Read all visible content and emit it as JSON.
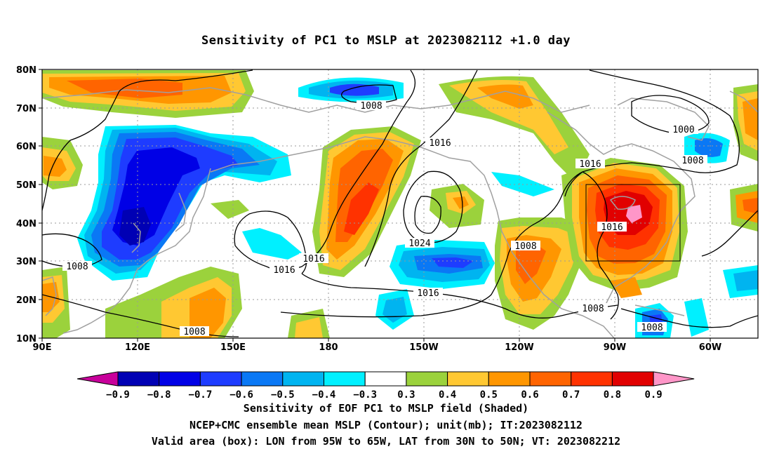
{
  "title": "Sensitivity of PC1 to MSLP at 2023082112 +1.0 day",
  "map": {
    "lat_ticks": [
      "10N",
      "20N",
      "30N",
      "40N",
      "50N",
      "60N",
      "70N",
      "80N"
    ],
    "lon_ticks": [
      "90E",
      "120E",
      "150E",
      "180",
      "150W",
      "120W",
      "90W",
      "60W"
    ],
    "contour_labels": [
      {
        "text": "1008",
        "id": "c1"
      },
      {
        "text": "1000",
        "id": "c2"
      },
      {
        "text": "1016",
        "id": "c3"
      },
      {
        "text": "1008",
        "id": "c4"
      },
      {
        "text": "1016",
        "id": "c5"
      },
      {
        "text": "1024",
        "id": "c6"
      },
      {
        "text": "1016",
        "id": "c7"
      },
      {
        "text": "1016",
        "id": "c8"
      },
      {
        "text": "1016",
        "id": "c9"
      },
      {
        "text": "1016",
        "id": "c10"
      },
      {
        "text": "1008",
        "id": "c11"
      },
      {
        "text": "1008",
        "id": "c12"
      },
      {
        "text": "1008",
        "id": "c13"
      },
      {
        "text": "1008",
        "id": "c14"
      },
      {
        "text": "1008",
        "id": "c15"
      }
    ],
    "valid_box": {
      "lon_min": "95W",
      "lon_max": "65W",
      "lat_min": "30N",
      "lat_max": "50N"
    }
  },
  "colorbar": {
    "labels": [
      "-0.9",
      "-0.8",
      "-0.7",
      "-0.6",
      "-0.5",
      "-0.4",
      "-0.3",
      "0.3",
      "0.4",
      "0.5",
      "0.6",
      "0.7",
      "0.8",
      "0.9"
    ],
    "colors": [
      "#0000b4",
      "#0000e6",
      "#1e3cff",
      "#0a78f5",
      "#00b4f0",
      "#00f0ff",
      "#ffffff",
      "#9bd23c",
      "#ffc832",
      "#ff9600",
      "#ff6400",
      "#ff3200",
      "#e10000"
    ],
    "low_extend_color": "#c8009b",
    "high_extend_color": "#ff96c8"
  },
  "caption": {
    "line1": "Sensitivity of EOF PC1 to MSLP field (Shaded)",
    "line2": "NCEP+CMC ensemble mean MSLP (Contour); unit(mb); IT:2023082112",
    "line3": "Valid area (box): LON from 95W to 65W, LAT from 30N to 50N; VT: 2023082212"
  }
}
